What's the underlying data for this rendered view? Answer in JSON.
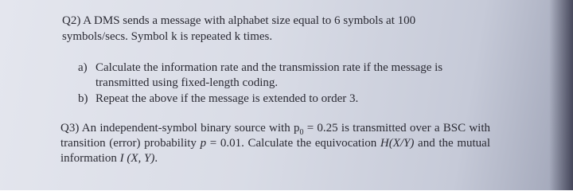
{
  "q2": {
    "label": "Q2)",
    "text": "A DMS sends a message with alphabet size equal to 6 symbols at 100 symbols/secs. Symbol k is repeated k times.",
    "parts": [
      {
        "label": "a)",
        "text": "Calculate the information rate and the transmission rate if the message is transmitted using fixed-length coding."
      },
      {
        "label": "b)",
        "text": "Repeat the above if the message is extended to order 3."
      }
    ]
  },
  "q3": {
    "label": "Q3)",
    "text_1": "An independent-symbol binary source with ",
    "p_symbol": "p",
    "p_subscript": "0",
    "text_2": " = 0.25 is transmitted over a BSC with transition (error) probability ",
    "p_var": "p",
    "text_3": " = 0.01. Calculate the equivocation ",
    "equivocation": "H(X/Y)",
    "text_4": " and the mutual information ",
    "mutual_info": "I (X, Y)",
    "text_5": "."
  }
}
